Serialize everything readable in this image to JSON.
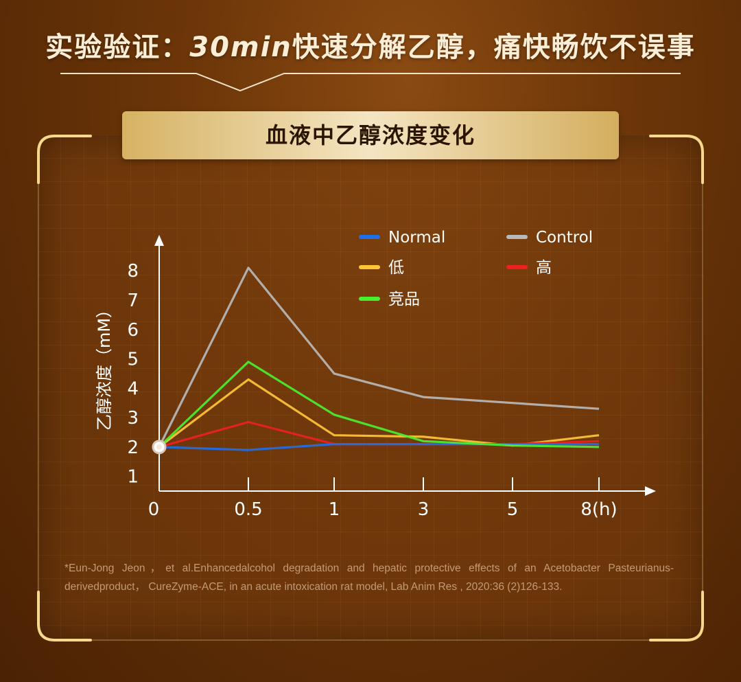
{
  "header": {
    "prefix": "实验验证：",
    "highlight": "30min",
    "suffix": "快速分解乙醇，痛快畅饮不误事"
  },
  "panel": {
    "title": "血液中乙醇浓度变化"
  },
  "colors": {
    "Normal": "#1e6fe8",
    "Control": "#b9b9b9",
    "低": "#ffc637",
    "高": "#ee2020",
    "竞品": "#48f030"
  },
  "chart_data": {
    "type": "line",
    "xlabel": "",
    "ylabel": "乙醇浓度（mM）",
    "categories": [
      "0",
      "0.5",
      "1",
      "3",
      "5",
      "8(h)"
    ],
    "yticks": [
      "1",
      "2",
      "3",
      "4",
      "5",
      "6",
      "7",
      "8"
    ],
    "ylim": [
      0.5,
      8.8
    ],
    "legend_position": "top-right",
    "grid": false,
    "series": [
      {
        "name": "Normal",
        "values": [
          2.0,
          1.9,
          2.1,
          2.1,
          2.1,
          2.1
        ]
      },
      {
        "name": "Control",
        "values": [
          2.0,
          8.1,
          4.5,
          3.7,
          3.5,
          3.3
        ]
      },
      {
        "name": "低",
        "values": [
          2.0,
          4.3,
          2.4,
          2.35,
          2.05,
          2.4
        ]
      },
      {
        "name": "高",
        "values": [
          2.0,
          2.85,
          2.1,
          2.1,
          2.1,
          2.2
        ]
      },
      {
        "name": "竞品",
        "values": [
          2.0,
          4.9,
          3.1,
          2.2,
          2.05,
          2.0
        ]
      }
    ]
  },
  "footnote": "*Eun-Jong Jeon，et al.Enhancedalcohol degradation and hepatic protective effects of an Acetobacter Pasteurianus-derivedproduct， CureZyme-ACE, in an acute intoxication rat model, Lab Anim Res , 2020:36 (2)126-133."
}
